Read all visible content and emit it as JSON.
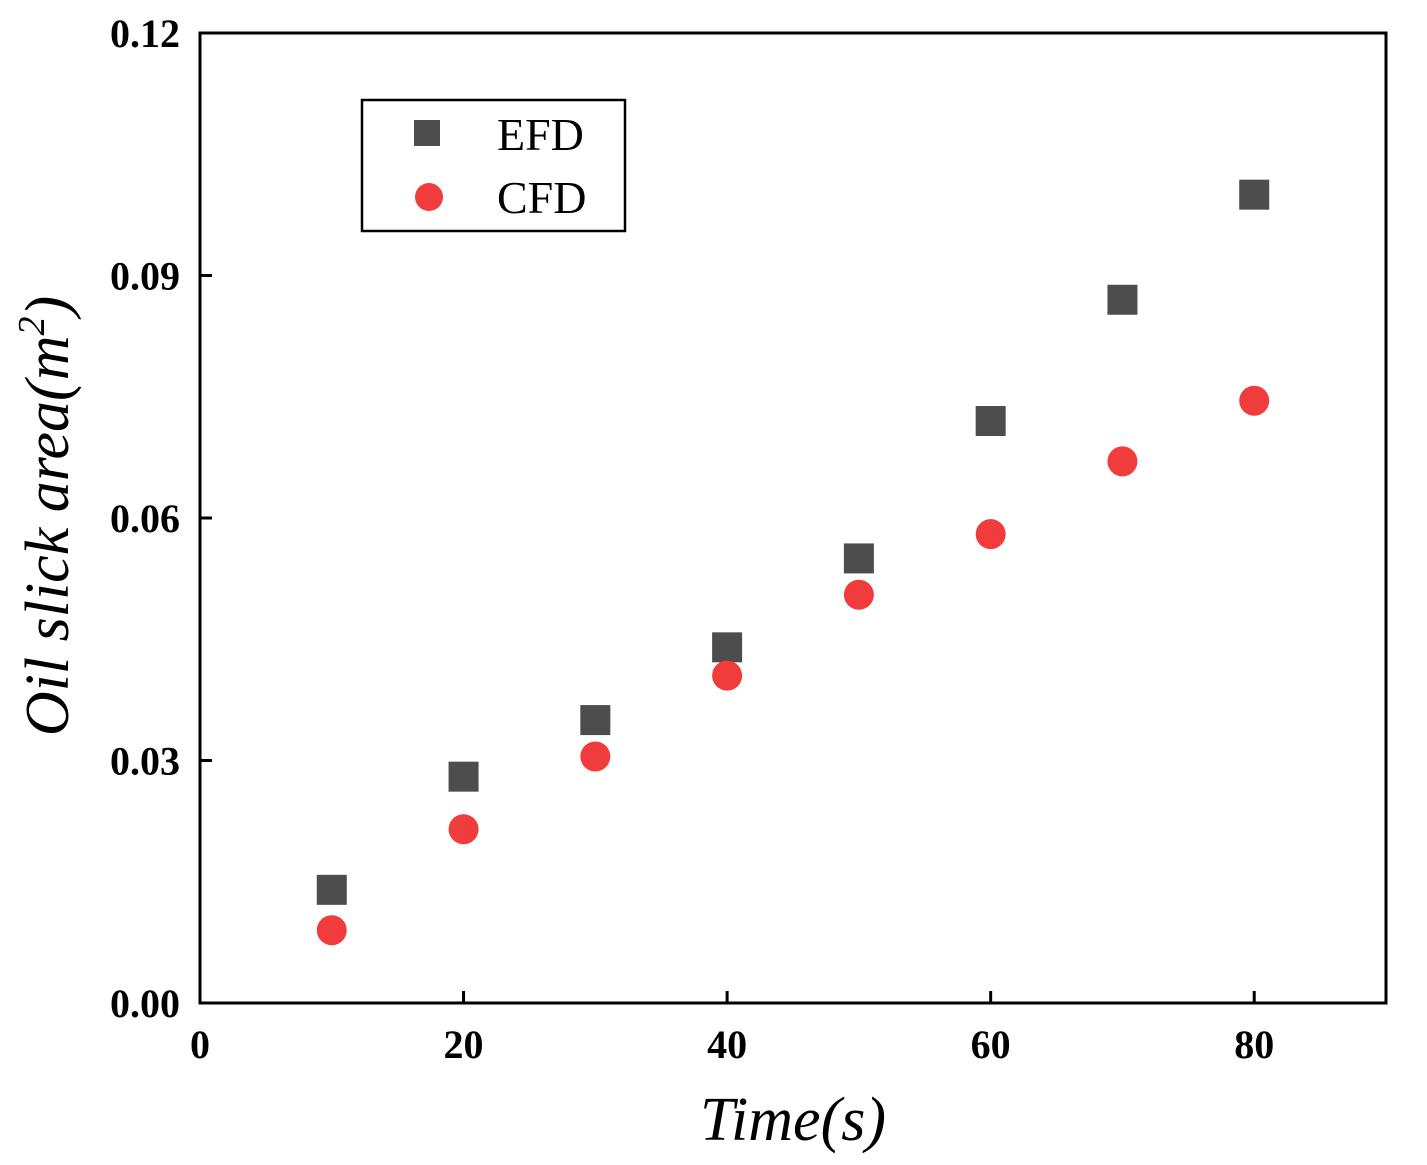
{
  "chart_data": {
    "type": "scatter",
    "title": "",
    "xlabel": "Time(s)",
    "ylabel_main": "Oil slick area(m",
    "ylabel_sup": "2",
    "ylabel_close": ")",
    "xlim": [
      0,
      90
    ],
    "ylim": [
      0,
      0.12
    ],
    "x_ticks": [
      0,
      20,
      40,
      60,
      80
    ],
    "x_tick_labels": [
      "0",
      "20",
      "40",
      "60",
      "80"
    ],
    "y_ticks": [
      0,
      0.03,
      0.06,
      0.09,
      0.12
    ],
    "y_tick_labels": [
      "0.00",
      "0.03",
      "0.06",
      "0.09",
      "0.12"
    ],
    "grid": false,
    "legend_position": "top-left",
    "series": [
      {
        "name": "EFD",
        "marker": "square",
        "color": "#4d4d4d",
        "x": [
          10,
          20,
          30,
          40,
          50,
          60,
          70,
          80
        ],
        "y": [
          0.014,
          0.028,
          0.035,
          0.044,
          0.055,
          0.072,
          0.087,
          0.1
        ]
      },
      {
        "name": "CFD",
        "marker": "circle",
        "color": "#f03c3c",
        "x": [
          10,
          20,
          30,
          40,
          50,
          60,
          70,
          80
        ],
        "y": [
          0.009,
          0.0215,
          0.0305,
          0.0405,
          0.0505,
          0.058,
          0.067,
          0.0745
        ]
      }
    ]
  }
}
